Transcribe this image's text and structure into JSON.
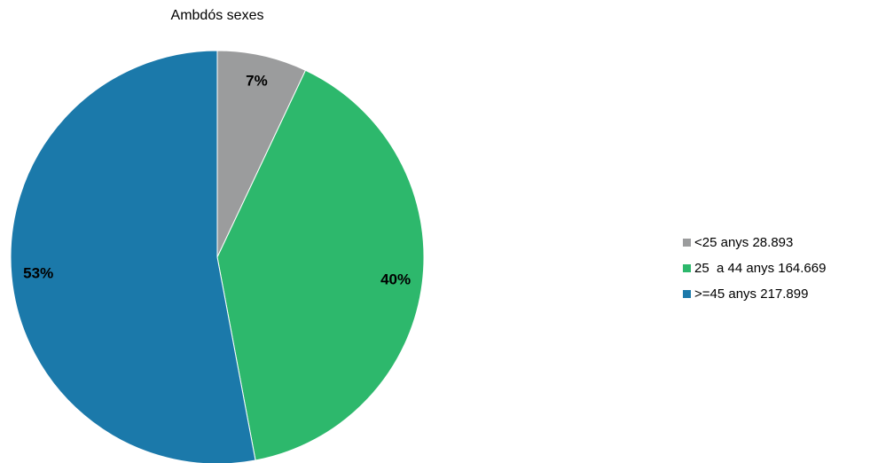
{
  "chart_data": {
    "type": "pie",
    "title": "Ambdós sexes",
    "slices": [
      {
        "label": "<25 anys 28.893",
        "value": 28893,
        "percent_label": "7%",
        "color": "#9b9c9d"
      },
      {
        "label": "25  a 44 anys 164.669",
        "value": 164669,
        "percent_label": "40%",
        "color": "#2db86c"
      },
      {
        "label": ">=45 anys 217.899",
        "value": 217899,
        "percent_label": "53%",
        "color": "#1b79aa"
      }
    ],
    "start_angle": "12 o'clock",
    "direction": "clockwise",
    "legend_position": "right"
  }
}
